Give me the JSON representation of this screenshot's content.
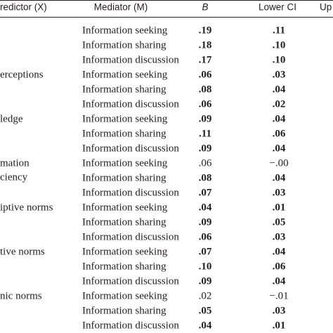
{
  "table": {
    "header": [
      "redictor (X)",
      "Mediator (M)",
      "B",
      "Lower CI",
      "Up"
    ],
    "groups": [
      {
        "rows": [
          {
            "mediator": "Information seeking",
            "b": ".19",
            "lower_ci": ".11",
            "bold": true
          },
          {
            "mediator": "Information sharing",
            "b": ".18",
            "lower_ci": ".10",
            "bold": true
          },
          {
            "mediator": "Information discussion",
            "b": ".17",
            "lower_ci": ".10",
            "bold": true
          }
        ]
      },
      {
        "predictor": [
          "erceptions"
        ],
        "rows": [
          {
            "mediator": "Information seeking",
            "b": ".06",
            "lower_ci": ".03",
            "bold": true
          },
          {
            "mediator": "Information sharing",
            "b": ".08",
            "lower_ci": ".04",
            "bold": true
          },
          {
            "mediator": "Information discussion",
            "b": ".06",
            "lower_ci": ".02",
            "bold": true
          }
        ]
      },
      {
        "predictor": [
          "ledge"
        ],
        "rows": [
          {
            "mediator": "Information seeking",
            "b": ".09",
            "lower_ci": ".04",
            "bold": true
          },
          {
            "mediator": "Information sharing",
            "b": ".11",
            "lower_ci": ".06",
            "bold": true
          },
          {
            "mediator": "Information discussion",
            "b": ".09",
            "lower_ci": ".04",
            "bold": true
          }
        ]
      },
      {
        "predictor": [
          "mation",
          "ciency"
        ],
        "rows": [
          {
            "mediator": "Information seeking",
            "b": ".06",
            "lower_ci": "−.00",
            "bold": false
          },
          {
            "mediator": "Information sharing",
            "b": ".08",
            "lower_ci": ".04",
            "bold": true
          },
          {
            "mediator": "Information discussion",
            "b": ".07",
            "lower_ci": ".03",
            "bold": true
          }
        ]
      },
      {
        "predictor": [
          "iptive norms"
        ],
        "rows": [
          {
            "mediator": "Information seeking",
            "b": ".04",
            "lower_ci": ".01",
            "bold": true
          },
          {
            "mediator": "Information sharing",
            "b": ".09",
            "lower_ci": ".05",
            "bold": true
          },
          {
            "mediator": "Information discussion",
            "b": ".06",
            "lower_ci": ".03",
            "bold": true
          }
        ]
      },
      {
        "predictor": [
          "tive norms"
        ],
        "rows": [
          {
            "mediator": "Information seeking",
            "b": ".07",
            "lower_ci": ".04",
            "bold": true
          },
          {
            "mediator": "Information sharing",
            "b": ".10",
            "lower_ci": ".06",
            "bold": true
          },
          {
            "mediator": "Information discussion",
            "b": ".09",
            "lower_ci": ".04",
            "bold": true
          }
        ]
      },
      {
        "predictor": [
          "nic norms"
        ],
        "rows": [
          {
            "mediator": "Information seeking",
            "b": ".02",
            "lower_ci": "−.01",
            "bold": false
          },
          {
            "mediator": "Information sharing",
            "b": ".05",
            "lower_ci": ".03",
            "bold": true
          },
          {
            "mediator": "Information discussion",
            "b": ".04",
            "lower_ci": ".01",
            "bold": true
          }
        ]
      }
    ]
  }
}
